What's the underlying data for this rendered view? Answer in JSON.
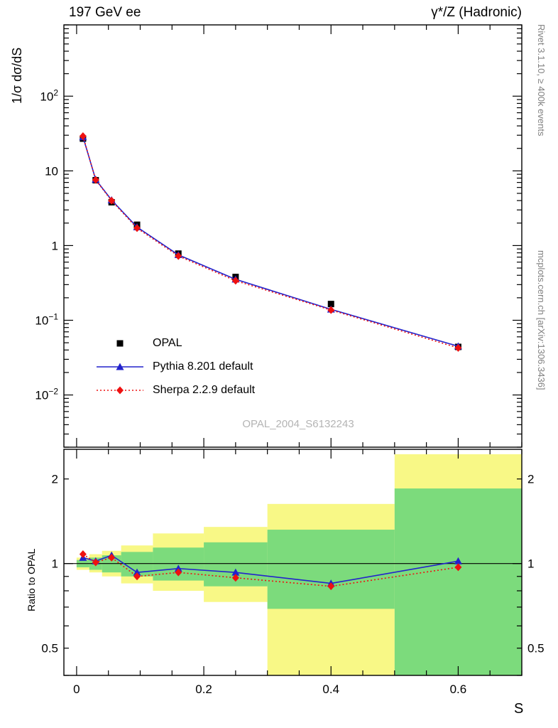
{
  "header": {
    "title_left": "197 GeV ee",
    "title_right": "γ*/Z (Hadronic)"
  },
  "annotations": {
    "rivet_note": "Rivet 3.1.10, ≥ 400k events",
    "mcplots_note": "mcplots.cern.ch [arXiv:1306.3436]",
    "watermark": "OPAL_2004_S6132243"
  },
  "chart_data": [
    {
      "type": "line",
      "panel": "main",
      "xscale": "linear",
      "yscale": "log",
      "xlim": [
        -0.02,
        0.7
      ],
      "ylim": [
        0.002,
        900
      ],
      "ylabel": "1/σ dσ/dS",
      "grid": false,
      "x": [
        0.01,
        0.03,
        0.055,
        0.095,
        0.16,
        0.25,
        0.4,
        0.6
      ],
      "series": [
        {
          "name": "OPAL",
          "marker": "square",
          "line": "none",
          "color": "#000000",
          "values": [
            27,
            7.5,
            3.8,
            1.9,
            0.78,
            0.38,
            0.165,
            0.044
          ]
        },
        {
          "name": "Pythia 8.201 default",
          "marker": "triangle",
          "line": "solid",
          "color": "#2222cc",
          "values": [
            28.4,
            7.65,
            4.07,
            1.77,
            0.75,
            0.353,
            0.14,
            0.0449
          ]
        },
        {
          "name": "Sherpa 2.2.9 default",
          "marker": "diamond",
          "line": "dotted",
          "color": "#ee1111",
          "values": [
            29.2,
            7.58,
            3.99,
            1.71,
            0.725,
            0.338,
            0.137,
            0.0427
          ]
        }
      ],
      "xticks": {
        "major": [
          0,
          0.2,
          0.4,
          0.6
        ],
        "labels": [
          "0",
          "0.2",
          "0.4",
          "0.6"
        ],
        "minor_step": 0.05
      }
    },
    {
      "type": "ratio",
      "panel": "ratio",
      "xscale": "linear",
      "yscale": "log",
      "xlim": [
        -0.02,
        0.7
      ],
      "ylim": [
        0.4,
        2.55
      ],
      "xlabel": "S",
      "ylabel": "Ratio to OPAL",
      "reference_line": 1,
      "yticks": [
        {
          "v": 0.5,
          "label": "0.5"
        },
        {
          "v": 1,
          "label": "1"
        },
        {
          "v": 2,
          "label": "2"
        }
      ],
      "bin_edges": [
        0,
        0.02,
        0.04,
        0.07,
        0.12,
        0.2,
        0.3,
        0.5,
        0.7
      ],
      "x": [
        0.01,
        0.03,
        0.055,
        0.095,
        0.16,
        0.25,
        0.4,
        0.6
      ],
      "bands": {
        "yellow_color": "#f8f886",
        "green_color": "#7cdb7c",
        "yellow": [
          [
            0.95,
            1.05
          ],
          [
            0.93,
            1.08
          ],
          [
            0.9,
            1.11
          ],
          [
            0.85,
            1.16
          ],
          [
            0.8,
            1.28
          ],
          [
            0.73,
            1.35
          ],
          [
            0.35,
            1.63
          ],
          [
            0.35,
            2.45
          ]
        ],
        "green": [
          [
            0.97,
            1.03
          ],
          [
            0.95,
            1.05
          ],
          [
            0.93,
            1.07
          ],
          [
            0.9,
            1.1
          ],
          [
            0.87,
            1.14
          ],
          [
            0.83,
            1.19
          ],
          [
            0.69,
            1.32
          ],
          [
            0.35,
            1.85
          ]
        ]
      },
      "series": [
        {
          "name": "Pythia 8.201 default",
          "marker": "triangle",
          "line": "solid",
          "color": "#2222cc",
          "values": [
            1.05,
            1.02,
            1.07,
            0.93,
            0.96,
            0.93,
            0.85,
            1.02
          ]
        },
        {
          "name": "Sherpa 2.2.9 default",
          "marker": "diamond",
          "line": "dotted",
          "color": "#ee1111",
          "values": [
            1.08,
            1.01,
            1.05,
            0.9,
            0.93,
            0.89,
            0.83,
            0.97
          ]
        }
      ]
    }
  ]
}
